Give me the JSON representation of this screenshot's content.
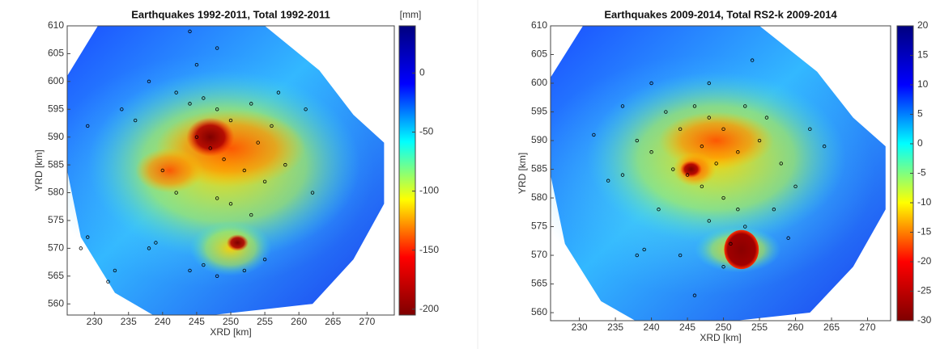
{
  "chart_data": [
    {
      "type": "heatmap-scatter",
      "title": "Earthquakes 1992-2011, Total 1992-2011",
      "xlabel": "XRD [km]",
      "ylabel": "YRD [km]",
      "xlim": [
        226,
        274
      ],
      "ylim": [
        558,
        610
      ],
      "xticks": [
        230,
        235,
        240,
        245,
        250,
        255,
        260,
        265,
        270
      ],
      "yticks": [
        560,
        565,
        570,
        575,
        580,
        585,
        590,
        595,
        600,
        605,
        610
      ],
      "colorbar": {
        "label": "[mm]",
        "lim": [
          -205,
          40
        ],
        "ticks": [
          -200,
          -150,
          -100,
          -50,
          0
        ]
      },
      "colormap": [
        "#7f0000",
        "#ff0000",
        "#ffff00",
        "#00ffff",
        "#0000ff",
        "#00007f"
      ],
      "points": {
        "x": [
          244,
          246,
          242,
          248,
          250,
          245,
          247,
          249,
          252,
          254,
          256,
          240,
          242,
          248,
          250,
          253,
          255,
          258,
          236,
          234,
          229,
          238,
          245,
          248,
          253,
          257,
          244,
          246,
          248,
          252,
          255,
          239,
          238,
          228,
          229,
          233,
          232,
          244,
          261,
          262
        ],
        "y": [
          596,
          597,
          598,
          595,
          593,
          590,
          588,
          586,
          584,
          589,
          592,
          584,
          580,
          579,
          578,
          576,
          582,
          585,
          593,
          595,
          592,
          600,
          603,
          606,
          596,
          598,
          566,
          567,
          565,
          566,
          568,
          571,
          570,
          570,
          572,
          566,
          564,
          609,
          595,
          580
        ]
      }
    },
    {
      "type": "heatmap-scatter",
      "title": "Earthquakes 2009-2014, Total RS2-k 2009-2014",
      "xlabel": "XRD [km]",
      "ylabel": "YRD [km]",
      "xlim": [
        226,
        273.2
      ],
      "ylim": [
        558.6,
        610
      ],
      "xticks": [
        230,
        235,
        240,
        245,
        250,
        255,
        260,
        265,
        270
      ],
      "yticks": [
        560,
        565,
        570,
        575,
        580,
        585,
        590,
        595,
        600,
        605,
        610
      ],
      "colorbar": {
        "lim": [
          -30,
          20
        ],
        "ticks": [
          -30,
          -25,
          -20,
          -15,
          -10,
          -5,
          0,
          5,
          10,
          15,
          20
        ]
      },
      "colormap": [
        "#7f0000",
        "#ff0000",
        "#ffff00",
        "#00ffff",
        "#0000ff",
        "#00007f"
      ],
      "points": {
        "x": [
          246,
          248,
          250,
          244,
          247,
          249,
          252,
          255,
          245,
          247,
          250,
          252,
          248,
          243,
          240,
          238,
          236,
          234,
          232,
          240,
          248,
          253,
          256,
          258,
          260,
          239,
          238,
          244,
          246,
          250,
          253,
          257,
          242,
          254,
          262,
          264,
          236,
          241,
          251,
          259
        ],
        "y": [
          596,
          594,
          592,
          592,
          589,
          586,
          588,
          590,
          584,
          582,
          580,
          578,
          576,
          585,
          588,
          590,
          584,
          583,
          591,
          600,
          600,
          596,
          594,
          586,
          582,
          571,
          570,
          570,
          563,
          568,
          575,
          578,
          595,
          604,
          592,
          589,
          596,
          578,
          572,
          573
        ]
      }
    }
  ]
}
